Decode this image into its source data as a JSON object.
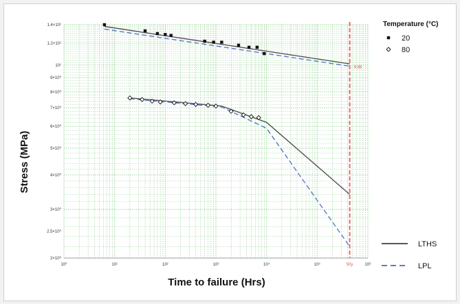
{
  "chart_data": {
    "type": "scatter",
    "xlabel": "Time to failure (Hrs)",
    "ylabel": "Stress (MPa)",
    "x_scale": "log",
    "y_scale": "log",
    "xlim": [
      1,
      1000000
    ],
    "ylim": [
      2,
      14
    ],
    "x_ticks": [
      {
        "value": 1,
        "label": "10⁰"
      },
      {
        "value": 10,
        "label": "10¹"
      },
      {
        "value": 100,
        "label": "10²"
      },
      {
        "value": 1000,
        "label": "10³"
      },
      {
        "value": 10000,
        "label": "10⁴"
      },
      {
        "value": 100000,
        "label": "10⁵"
      },
      {
        "value": 1000000,
        "label": "10⁶"
      }
    ],
    "y_ticks": [
      {
        "value": 2,
        "label": "2×10⁰"
      },
      {
        "value": 2.5,
        "label": "2.5×10⁰"
      },
      {
        "value": 3,
        "label": "3×10⁰"
      },
      {
        "value": 4,
        "label": "4×10⁰"
      },
      {
        "value": 5,
        "label": "5×10⁰"
      },
      {
        "value": 6,
        "label": "6×10⁰"
      },
      {
        "value": 7,
        "label": "7×10⁰"
      },
      {
        "value": 8,
        "label": "8×10⁰"
      },
      {
        "value": 9,
        "label": "9×10⁰"
      },
      {
        "value": 10,
        "label": "10¹"
      },
      {
        "value": 12,
        "label": "1.2×10¹"
      },
      {
        "value": 14,
        "label": "1.4×10¹"
      }
    ],
    "grid": true,
    "grid_color": "#8fd18f",
    "legend_placement": "right",
    "legend_title": "Temperature (°C)",
    "series": [
      {
        "name": "20",
        "marker": "square",
        "color": "#111111",
        "points": [
          {
            "x": 6.3,
            "y": 14.0
          },
          {
            "x": 40,
            "y": 13.3
          },
          {
            "x": 70,
            "y": 13.0
          },
          {
            "x": 100,
            "y": 12.9
          },
          {
            "x": 130,
            "y": 12.8
          },
          {
            "x": 600,
            "y": 12.2
          },
          {
            "x": 900,
            "y": 12.1
          },
          {
            "x": 1300,
            "y": 12.1
          },
          {
            "x": 2800,
            "y": 11.8
          },
          {
            "x": 4500,
            "y": 11.6
          },
          {
            "x": 6500,
            "y": 11.6
          },
          {
            "x": 9000,
            "y": 11.0
          }
        ]
      },
      {
        "name": "80",
        "marker": "diamond",
        "color": "#111111",
        "points": [
          {
            "x": 20,
            "y": 7.6
          },
          {
            "x": 35,
            "y": 7.5
          },
          {
            "x": 55,
            "y": 7.4
          },
          {
            "x": 80,
            "y": 7.35
          },
          {
            "x": 150,
            "y": 7.3
          },
          {
            "x": 250,
            "y": 7.25
          },
          {
            "x": 400,
            "y": 7.2
          },
          {
            "x": 700,
            "y": 7.15
          },
          {
            "x": 1000,
            "y": 7.1
          },
          {
            "x": 2000,
            "y": 6.8
          },
          {
            "x": 3500,
            "y": 6.6
          },
          {
            "x": 5000,
            "y": 6.5
          },
          {
            "x": 7000,
            "y": 6.45
          }
        ]
      }
    ],
    "lines": [
      {
        "name": "LTHS",
        "style": "solid",
        "color": "#555555",
        "points": [
          {
            "x": 6.3,
            "y": 13.8
          },
          {
            "x": 438000,
            "y": 10.1
          },
          {
            "x": 20,
            "y": 7.6
          },
          {
            "x": 1300,
            "y": 7.1
          },
          {
            "x": 10000,
            "y": 6.2
          },
          {
            "x": 438000,
            "y": 3.4
          }
        ],
        "segments": [
          [
            0,
            1
          ],
          [
            2,
            3,
            4,
            5
          ]
        ]
      },
      {
        "name": "LPL",
        "style": "dashed",
        "color": "#5b78c9",
        "points": [
          {
            "x": 6.3,
            "y": 13.5
          },
          {
            "x": 438000,
            "y": 9.9
          },
          {
            "x": 20,
            "y": 7.55
          },
          {
            "x": 1300,
            "y": 7.05
          },
          {
            "x": 10000,
            "y": 5.9
          },
          {
            "x": 438000,
            "y": 2.2
          }
        ],
        "segments": [
          [
            0,
            1
          ],
          [
            2,
            3,
            4,
            5
          ]
        ]
      }
    ],
    "reference_line": {
      "x": 438000,
      "color": "#e86b6b",
      "style": "dashed"
    },
    "annotations": [
      {
        "text": "9.88",
        "x": 438000,
        "y": 9.9
      },
      {
        "text": "50y",
        "x": 438000,
        "y": 1.95
      }
    ]
  },
  "ui": {
    "legend_line_labels": [
      "LTHS",
      "LPL"
    ]
  }
}
